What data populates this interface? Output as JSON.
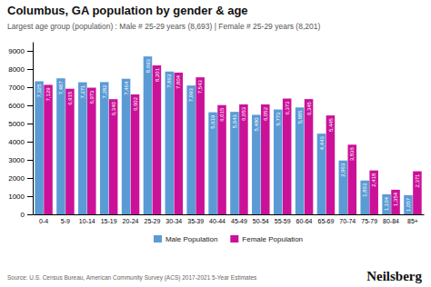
{
  "chart_data": {
    "type": "bar",
    "title": "Columbus, GA population by gender & age",
    "subtitle": "Largest age group (population) : Male # 25-29 years (8,693) | Female # 25-29 years (8,201)",
    "categories": [
      "0-4",
      "5-9",
      "10-14",
      "15-19",
      "20-24",
      "25-29",
      "30-34",
      "35-39",
      "40-44",
      "45-49",
      "50-54",
      "55-59",
      "60-64",
      "65-69",
      "70-74",
      "75-79",
      "80-84",
      "85+"
    ],
    "series": [
      {
        "name": "Male Population",
        "color": "#5b9bd5",
        "values": [
          7325,
          7487,
          7271,
          7282,
          7464,
          8693,
          7863,
          7093,
          5619,
          5643,
          5480,
          5773,
          5885,
          4443,
          2963,
          1863,
          1104,
          1057
        ],
        "value_labels": [
          "7,325",
          "7,487",
          "7,271",
          "7,282",
          "7,464",
          "8,693",
          "7,863",
          "7,093",
          "5,619",
          "5,643",
          "5,480",
          "5,773",
          "5,885",
          "4,443",
          "2,963",
          "1,863",
          "1,104",
          "1,057"
        ]
      },
      {
        "name": "Female Population",
        "color": "#cc1199",
        "values": [
          7129,
          6915,
          6973,
          6340,
          6602,
          8201,
          7804,
          7543,
          6015,
          6053,
          6052,
          6373,
          6345,
          5445,
          3836,
          2418,
          1354,
          2371
        ],
        "value_labels": [
          "7,129",
          "6,915",
          "6,973",
          "6,340",
          "6,602",
          "8,201",
          "7,804",
          "7,543",
          "6,015",
          "6,053",
          "6,052",
          "6,373",
          "6,345",
          "5,445",
          "3,836",
          "2,418",
          "1,354",
          "2,371"
        ]
      }
    ],
    "ylim": [
      0,
      9500
    ],
    "yticks": [
      0,
      1000,
      2000,
      3000,
      4000,
      5000,
      6000,
      7000,
      8000,
      9000
    ],
    "grid": false,
    "legend": "bottom",
    "data_labels": true,
    "annotations": [
      "Source: U.S. Census Bureau, American Community Survey (ACS) 2017-2021 5-Year Estimates",
      "Neilsberg"
    ]
  }
}
